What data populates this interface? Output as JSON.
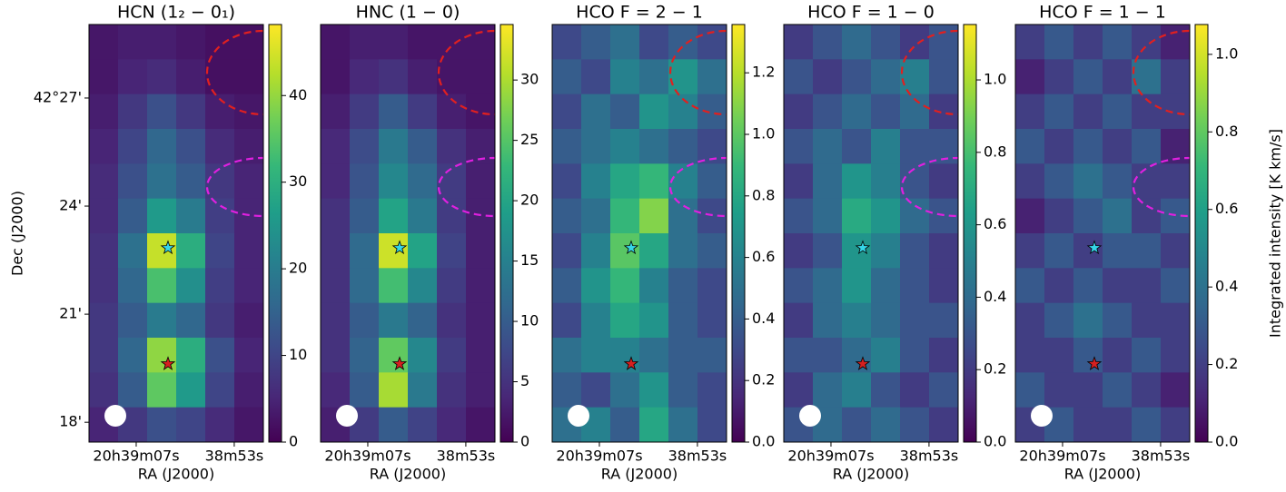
{
  "chart_data": [
    {
      "type": "heatmap",
      "title": "HCN (1₂ − 0₁)",
      "xlabel": "RA (J2000)",
      "ylabel": "Dec (J2000)",
      "xlim": [
        13.74,
        -11.16
      ],
      "xticks": [
        {
          "value": 7,
          "label": "20h39m07s"
        },
        {
          "value": -7,
          "label": "38m53s"
        }
      ],
      "ylim": [
        17.45,
        29.04
      ],
      "yticks": [
        {
          "value": 18,
          "label": "18'"
        },
        {
          "value": 21,
          "label": "21'"
        },
        {
          "value": 24,
          "label": "24'"
        },
        {
          "value": 27,
          "label": "42°27'"
        }
      ],
      "clim": [
        0,
        48.2
      ],
      "cticks": [
        0,
        10,
        20,
        30,
        40
      ],
      "markers": [
        {
          "x": 2.46,
          "y": 22.84,
          "color": "#35d6e8"
        },
        {
          "x": 2.46,
          "y": 19.62,
          "color": "#d62020"
        }
      ],
      "z": [
        [
          3,
          4,
          4,
          3,
          2,
          2
        ],
        [
          3,
          5,
          6,
          4,
          2,
          2
        ],
        [
          4,
          8,
          12,
          8,
          4,
          3
        ],
        [
          5,
          10,
          16,
          12,
          6,
          4
        ],
        [
          6,
          12,
          18,
          14,
          8,
          5
        ],
        [
          6,
          14,
          26,
          20,
          9,
          5
        ],
        [
          7,
          18,
          44,
          30,
          10,
          5
        ],
        [
          7,
          16,
          34,
          24,
          9,
          5
        ],
        [
          8,
          14,
          20,
          16,
          8,
          4
        ],
        [
          8,
          16,
          40,
          30,
          12,
          5
        ],
        [
          7,
          14,
          36,
          26,
          10,
          4
        ],
        [
          5,
          8,
          12,
          10,
          6,
          3
        ]
      ]
    },
    {
      "type": "heatmap",
      "title": "HNC (1 − 0)",
      "xlabel": "RA (J2000)",
      "xlim": [
        13.74,
        -11.16
      ],
      "xticks": [
        {
          "value": 7,
          "label": "20h39m07s"
        },
        {
          "value": -7,
          "label": "38m53s"
        }
      ],
      "ylim": [
        17.45,
        29.04
      ],
      "clim": [
        0,
        34.6
      ],
      "cticks": [
        0,
        5,
        10,
        15,
        20,
        25,
        30
      ],
      "markers": [
        {
          "x": 2.46,
          "y": 22.84,
          "color": "#35d6e8"
        },
        {
          "x": 2.46,
          "y": 19.62,
          "color": "#d62020"
        }
      ],
      "z": [
        [
          2,
          3,
          3,
          2,
          2,
          2
        ],
        [
          2,
          4,
          5,
          3,
          2,
          2
        ],
        [
          3,
          6,
          10,
          6,
          3,
          2
        ],
        [
          4,
          8,
          14,
          10,
          5,
          3
        ],
        [
          4,
          9,
          16,
          12,
          6,
          3
        ],
        [
          5,
          10,
          20,
          14,
          6,
          3
        ],
        [
          5,
          12,
          32,
          20,
          7,
          3
        ],
        [
          5,
          12,
          24,
          16,
          6,
          3
        ],
        [
          5,
          10,
          14,
          11,
          5,
          3
        ],
        [
          5,
          11,
          26,
          16,
          6,
          3
        ],
        [
          4,
          10,
          30,
          14,
          5,
          3
        ],
        [
          3,
          6,
          10,
          7,
          4,
          2
        ]
      ]
    },
    {
      "type": "heatmap",
      "title": "HCO F = 2 − 1",
      "xlabel": "RA (J2000)",
      "xlim": [
        13.74,
        -11.16
      ],
      "xticks": [
        {
          "value": 7,
          "label": "20h39m07s"
        },
        {
          "value": -7,
          "label": "38m53s"
        }
      ],
      "ylim": [
        17.45,
        29.04
      ],
      "clim": [
        0,
        1.357
      ],
      "cticks": [
        {
          "value": 0,
          "label": "0.0"
        },
        0.2,
        0.4,
        0.6,
        0.8,
        {
          "value": 1,
          "label": "1.0"
        },
        1.2
      ],
      "markers": [
        {
          "x": 2.46,
          "y": 22.84,
          "color": "#35d6e8"
        },
        {
          "x": 2.46,
          "y": 19.62,
          "color": "#d62020"
        }
      ],
      "z": [
        [
          0.3,
          0.4,
          0.5,
          0.3,
          0.4,
          0.3
        ],
        [
          0.4,
          0.3,
          0.6,
          0.5,
          0.7,
          0.5
        ],
        [
          0.3,
          0.5,
          0.4,
          0.7,
          0.6,
          0.4
        ],
        [
          0.4,
          0.5,
          0.6,
          0.5,
          0.4,
          0.3
        ],
        [
          0.3,
          0.6,
          0.8,
          0.9,
          0.6,
          0.4
        ],
        [
          0.4,
          0.5,
          0.9,
          1.1,
          0.5,
          0.3
        ],
        [
          0.3,
          0.6,
          1.0,
          0.8,
          0.5,
          0.4
        ],
        [
          0.4,
          0.7,
          0.9,
          0.6,
          0.4,
          0.3
        ],
        [
          0.3,
          0.6,
          0.8,
          0.7,
          0.4,
          0.3
        ],
        [
          0.5,
          0.6,
          0.6,
          0.5,
          0.4,
          0.4
        ],
        [
          0.4,
          0.3,
          0.5,
          0.7,
          0.4,
          0.3
        ],
        [
          0.5,
          0.6,
          0.4,
          0.8,
          0.5,
          0.3
        ]
      ]
    },
    {
      "type": "heatmap",
      "title": "HCO F = 1 − 0",
      "xlabel": "RA (J2000)",
      "xlim": [
        13.74,
        -11.16
      ],
      "xticks": [
        {
          "value": 7,
          "label": "20h39m07s"
        },
        {
          "value": -7,
          "label": "38m53s"
        }
      ],
      "ylim": [
        17.45,
        29.04
      ],
      "clim": [
        0,
        1.153
      ],
      "cticks": [
        {
          "value": 0,
          "label": "0.0"
        },
        0.2,
        0.4,
        0.6,
        0.8,
        {
          "value": 1,
          "label": "1.0"
        }
      ],
      "markers": [
        {
          "x": 2.46,
          "y": 22.84,
          "color": "#35d6e8"
        },
        {
          "x": 2.46,
          "y": 19.62,
          "color": "#d62020"
        }
      ],
      "z": [
        [
          0.2,
          0.3,
          0.4,
          0.3,
          0.2,
          0.3
        ],
        [
          0.3,
          0.2,
          0.3,
          0.4,
          0.5,
          0.3
        ],
        [
          0.2,
          0.3,
          0.4,
          0.3,
          0.4,
          0.2
        ],
        [
          0.3,
          0.4,
          0.3,
          0.5,
          0.3,
          0.3
        ],
        [
          0.2,
          0.4,
          0.6,
          0.5,
          0.3,
          0.2
        ],
        [
          0.3,
          0.4,
          0.7,
          0.6,
          0.4,
          0.3
        ],
        [
          0.2,
          0.3,
          0.6,
          0.5,
          0.3,
          0.2
        ],
        [
          0.3,
          0.4,
          0.6,
          0.4,
          0.3,
          0.2
        ],
        [
          0.2,
          0.4,
          0.5,
          0.4,
          0.3,
          0.3
        ],
        [
          0.3,
          0.3,
          0.4,
          0.5,
          0.3,
          0.2
        ],
        [
          0.2,
          0.4,
          0.5,
          0.3,
          0.2,
          0.3
        ],
        [
          0.3,
          0.4,
          0.3,
          0.4,
          0.3,
          0.2
        ]
      ]
    },
    {
      "type": "heatmap",
      "title": "HCO F = 1 − 1",
      "xlabel": "RA (J2000)",
      "clabel": "Integrated intensity [K km/s]",
      "xlim": [
        13.74,
        -11.16
      ],
      "xticks": [
        {
          "value": 7,
          "label": "20h39m07s"
        },
        {
          "value": -7,
          "label": "38m53s"
        }
      ],
      "ylim": [
        17.45,
        29.04
      ],
      "clim": [
        0,
        1.077
      ],
      "cticks": [
        {
          "value": 0,
          "label": "0.0"
        },
        0.2,
        0.4,
        0.6,
        0.8,
        {
          "value": 1,
          "label": "1.0"
        }
      ],
      "markers": [
        {
          "x": 2.46,
          "y": 22.84,
          "color": "#35d6e8"
        },
        {
          "x": 2.46,
          "y": 19.62,
          "color": "#d62020"
        }
      ],
      "z": [
        [
          0.2,
          0.3,
          0.2,
          0.3,
          0.2,
          0.1
        ],
        [
          0.1,
          0.2,
          0.3,
          0.2,
          0.4,
          0.2
        ],
        [
          0.2,
          0.3,
          0.2,
          0.3,
          0.2,
          0.2
        ],
        [
          0.3,
          0.2,
          0.3,
          0.2,
          0.3,
          0.1
        ],
        [
          0.2,
          0.3,
          0.4,
          0.3,
          0.2,
          0.2
        ],
        [
          0.1,
          0.2,
          0.3,
          0.4,
          0.2,
          0.3
        ],
        [
          0.2,
          0.3,
          0.2,
          0.3,
          0.3,
          0.2
        ],
        [
          0.3,
          0.2,
          0.3,
          0.2,
          0.2,
          0.3
        ],
        [
          0.2,
          0.3,
          0.4,
          0.3,
          0.2,
          0.2
        ],
        [
          0.2,
          0.2,
          0.3,
          0.2,
          0.3,
          0.2
        ],
        [
          0.3,
          0.2,
          0.2,
          0.3,
          0.2,
          0.1
        ],
        [
          0.2,
          0.3,
          0.2,
          0.2,
          0.3,
          0.2
        ]
      ]
    }
  ]
}
